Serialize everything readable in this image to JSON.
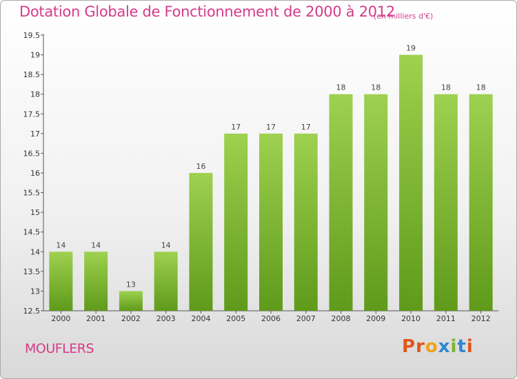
{
  "header": {
    "title": "Dotation Globale de Fonctionnement de 2000 à 2012",
    "unit": "(en milliers d'€)"
  },
  "footer": {
    "commune": "MOUFLERS",
    "logo": "Proxiti"
  },
  "colors": {
    "title": "#d63a8a",
    "bar_light": "#9ed14f",
    "bar_dark": "#5f9a1a",
    "logo_letters": [
      "#e0561b",
      "#e0561b",
      "#f0a21b",
      "#2f87d0",
      "#7bb52a",
      "#2f87d0",
      "#e0561b"
    ]
  },
  "chart_data": {
    "type": "bar",
    "categories": [
      "2000",
      "2001",
      "2002",
      "2003",
      "2004",
      "2005",
      "2006",
      "2007",
      "2008",
      "2009",
      "2010",
      "2011",
      "2012"
    ],
    "values": [
      14,
      14,
      13,
      14,
      16,
      17,
      17,
      17,
      18,
      18,
      19,
      18,
      18
    ],
    "data_labels": [
      "14",
      "14",
      "13",
      "14",
      "16",
      "17",
      "17",
      "17",
      "18",
      "18",
      "19",
      "18",
      "18"
    ],
    "ylim": [
      12.5,
      19.5
    ],
    "yticks": [
      "12.5",
      "13",
      "13.5",
      "14",
      "14.5",
      "15",
      "15.5",
      "16",
      "16.5",
      "17",
      "17.5",
      "18",
      "18.5",
      "19",
      "19.5"
    ],
    "grid": false
  }
}
